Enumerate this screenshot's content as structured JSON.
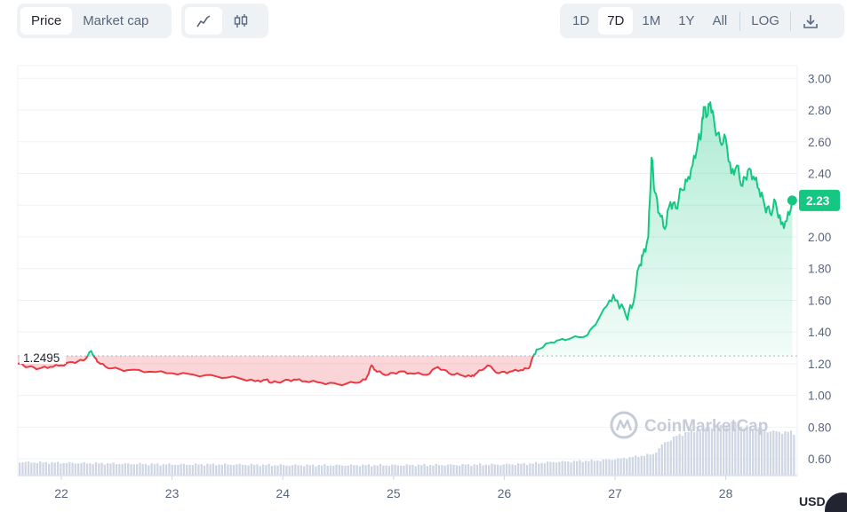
{
  "controls": {
    "metric_tabs": [
      {
        "label": "Price",
        "active": true
      },
      {
        "label": "Market cap",
        "active": false
      }
    ],
    "chart_style_buttons": [
      {
        "icon": "line-chart-icon",
        "active": true
      },
      {
        "icon": "candlestick-chart-icon",
        "active": false
      }
    ],
    "range_tabs": [
      {
        "label": "1D",
        "active": false
      },
      {
        "label": "7D",
        "active": true
      },
      {
        "label": "1M",
        "active": false
      },
      {
        "label": "1Y",
        "active": false
      },
      {
        "label": "All",
        "active": false
      }
    ],
    "log_label": "LOG",
    "download_icon": "download-icon"
  },
  "watermark": "CoinMarketCap",
  "currency_label": "USD",
  "colors": {
    "up": "#16c784",
    "down": "#ea3943",
    "accent_button_bg": "#eff2f5",
    "volume": "#cfd6e4"
  },
  "chart_data": {
    "type": "line",
    "x_ticks": [
      "22",
      "23",
      "24",
      "25",
      "26",
      "27",
      "28"
    ],
    "y_ticks": [
      "0.60",
      "0.80",
      "1.00",
      "1.20",
      "1.40",
      "1.60",
      "1.80",
      "2.00",
      "2.20",
      "2.40",
      "2.60",
      "2.80",
      "3.00"
    ],
    "ylim": [
      0.5,
      3.08
    ],
    "reference_value": 1.2495,
    "reference_label": "1.2495",
    "current_value": 2.23,
    "current_label": "2.23",
    "grid": true,
    "price_series": {
      "x": [
        21.62,
        21.7,
        21.8,
        21.9,
        22.0,
        22.1,
        22.2,
        22.27,
        22.3,
        22.35,
        22.45,
        22.6,
        22.8,
        23.0,
        23.2,
        23.4,
        23.6,
        23.75,
        23.85,
        23.9,
        24.0,
        24.1,
        24.2,
        24.35,
        24.5,
        24.65,
        24.75,
        24.8,
        24.85,
        24.95,
        25.05,
        25.15,
        25.3,
        25.4,
        25.5,
        25.6,
        25.7,
        25.75,
        25.85,
        25.95,
        26.05,
        26.15,
        26.22,
        26.27,
        26.3,
        26.4,
        26.5,
        26.6,
        26.75,
        26.85,
        26.95,
        27.02,
        27.1,
        27.15,
        27.22,
        27.25,
        27.3,
        27.33,
        27.36,
        27.4,
        27.45,
        27.5,
        27.55,
        27.6,
        27.65,
        27.7,
        27.75,
        27.78,
        27.8,
        27.83,
        27.86,
        27.9,
        27.95,
        28.0,
        28.05,
        28.1,
        28.15,
        28.2,
        28.25,
        28.3,
        28.35,
        28.4,
        28.45,
        28.5,
        28.55,
        28.6
      ],
      "y": [
        1.2,
        1.18,
        1.17,
        1.18,
        1.19,
        1.21,
        1.22,
        1.28,
        1.24,
        1.2,
        1.17,
        1.16,
        1.15,
        1.14,
        1.13,
        1.12,
        1.11,
        1.09,
        1.1,
        1.08,
        1.09,
        1.1,
        1.09,
        1.08,
        1.07,
        1.08,
        1.1,
        1.19,
        1.15,
        1.13,
        1.15,
        1.14,
        1.13,
        1.18,
        1.14,
        1.13,
        1.12,
        1.14,
        1.19,
        1.14,
        1.15,
        1.16,
        1.17,
        1.26,
        1.29,
        1.33,
        1.35,
        1.36,
        1.38,
        1.48,
        1.6,
        1.6,
        1.5,
        1.55,
        1.82,
        1.88,
        2.0,
        2.5,
        2.28,
        2.15,
        2.05,
        2.22,
        2.18,
        2.3,
        2.35,
        2.45,
        2.6,
        2.66,
        2.82,
        2.76,
        2.85,
        2.7,
        2.6,
        2.62,
        2.4,
        2.45,
        2.32,
        2.42,
        2.38,
        2.3,
        2.2,
        2.15,
        2.22,
        2.08,
        2.1,
        2.23
      ]
    },
    "volume_series": {
      "x": [
        21.62,
        22.0,
        22.5,
        23.0,
        23.5,
        24.0,
        24.5,
        25.0,
        25.5,
        26.0,
        26.2,
        26.4,
        26.6,
        26.8,
        27.0,
        27.1,
        27.2,
        27.3,
        27.35,
        27.4,
        27.5,
        27.6,
        27.7,
        27.8,
        27.9,
        28.0,
        28.1,
        28.2,
        28.3,
        28.4,
        28.5,
        28.6
      ],
      "y": [
        0.58,
        0.575,
        0.57,
        0.565,
        0.565,
        0.56,
        0.56,
        0.56,
        0.562,
        0.565,
        0.57,
        0.58,
        0.585,
        0.59,
        0.6,
        0.61,
        0.62,
        0.63,
        0.66,
        0.7,
        0.74,
        0.77,
        0.78,
        0.8,
        0.81,
        0.82,
        0.8,
        0.79,
        0.78,
        0.77,
        0.77,
        0.76
      ]
    }
  }
}
